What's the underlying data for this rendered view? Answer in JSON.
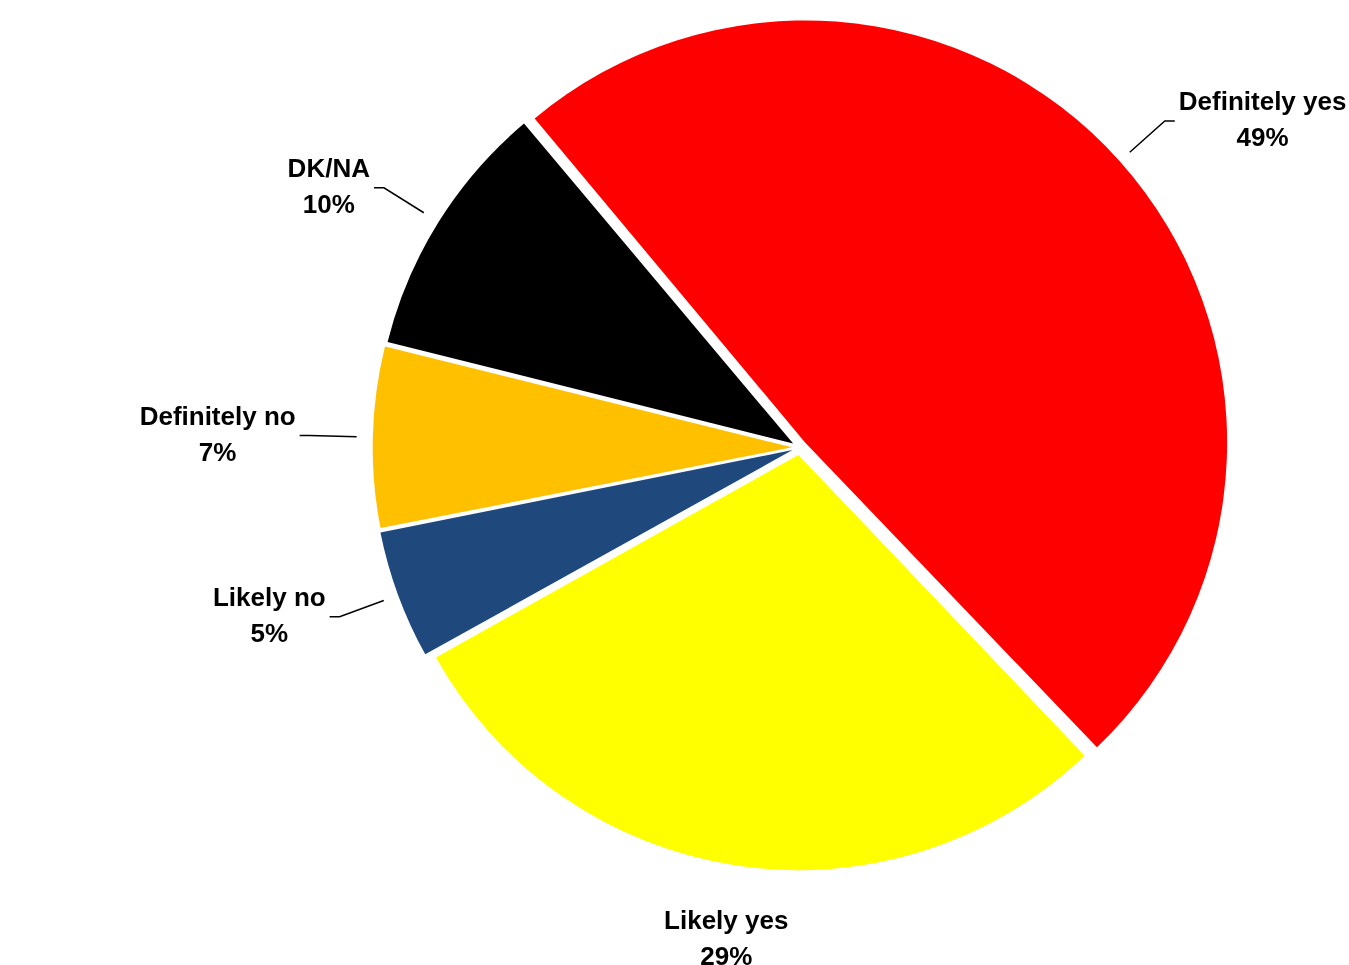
{
  "chart_data": {
    "type": "pie",
    "categories": [
      "Definitely yes",
      "Likely yes",
      "Likely no",
      "Definitely no",
      "DK/NA"
    ],
    "values": [
      49,
      29,
      5,
      7,
      10
    ],
    "colors": [
      "#ff0000",
      "#ffff00",
      "#1f497d",
      "#ffc000",
      "#000000"
    ],
    "value_labels": [
      "49%",
      "29%",
      "5%",
      "7%",
      "10%"
    ],
    "legend": false
  }
}
